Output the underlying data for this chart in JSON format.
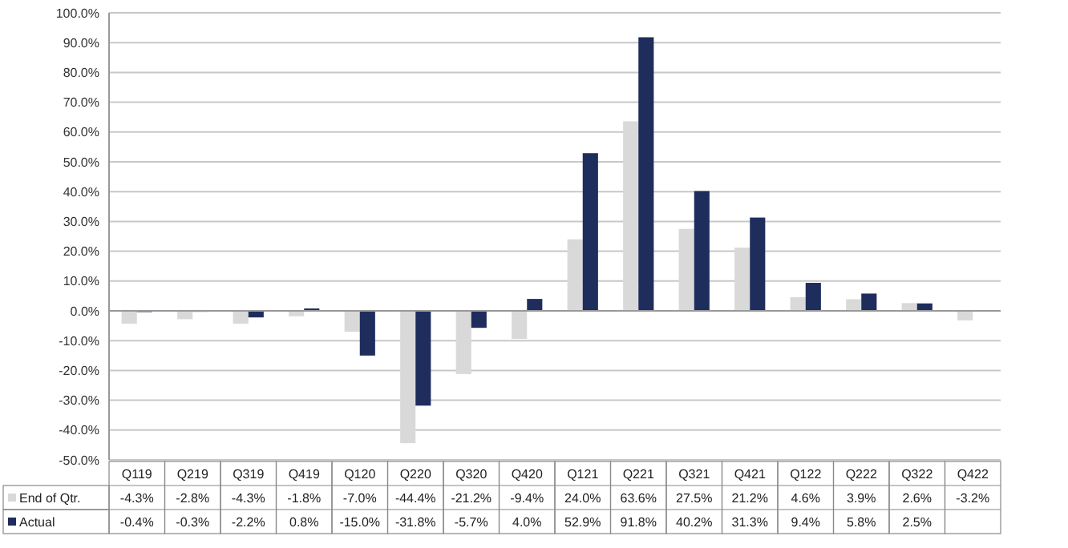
{
  "chart_data": {
    "type": "bar",
    "categories": [
      "Q119",
      "Q219",
      "Q319",
      "Q419",
      "Q120",
      "Q220",
      "Q320",
      "Q420",
      "Q121",
      "Q221",
      "Q321",
      "Q421",
      "Q122",
      "Q222",
      "Q322",
      "Q422"
    ],
    "series": [
      {
        "name": "End of Qtr.",
        "color": "#d9d9d9",
        "values": [
          -4.3,
          -2.8,
          -4.3,
          -1.8,
          -7.0,
          -44.4,
          -21.2,
          -9.4,
          24.0,
          63.6,
          27.5,
          21.2,
          4.6,
          3.9,
          2.6,
          -3.2
        ],
        "value_labels": [
          "-4.3%",
          "-2.8%",
          "-4.3%",
          "-1.8%",
          "-7.0%",
          "-44.4%",
          "-21.2%",
          "-9.4%",
          "24.0%",
          "63.6%",
          "27.5%",
          "21.2%",
          "4.6%",
          "3.9%",
          "2.6%",
          "-3.2%"
        ]
      },
      {
        "name": "Actual",
        "color": "#1f2d5c",
        "values": [
          -0.4,
          -0.3,
          -2.2,
          0.8,
          -15.0,
          -31.8,
          -5.7,
          4.0,
          52.9,
          91.8,
          40.2,
          31.3,
          9.4,
          5.8,
          2.5,
          null
        ],
        "value_labels": [
          "-0.4%",
          "-0.3%",
          "-2.2%",
          "0.8%",
          "-15.0%",
          "-31.8%",
          "-5.7%",
          "4.0%",
          "52.9%",
          "91.8%",
          "40.2%",
          "31.3%",
          "9.4%",
          "5.8%",
          "2.5%",
          null
        ]
      }
    ],
    "ylim": [
      -50,
      100
    ],
    "yticks": [
      {
        "value": -50,
        "label": "-50.0%"
      },
      {
        "value": -40,
        "label": "-40.0%"
      },
      {
        "value": -30,
        "label": "-30.0%"
      },
      {
        "value": -20,
        "label": "-20.0%"
      },
      {
        "value": -10,
        "label": "-10.0%"
      },
      {
        "value": 0,
        "label": "0.0%"
      },
      {
        "value": 10,
        "label": "10.0%"
      },
      {
        "value": 20,
        "label": "20.0%"
      },
      {
        "value": 30,
        "label": "30.0%"
      },
      {
        "value": 40,
        "label": "40.0%"
      },
      {
        "value": 50,
        "label": "50.0%"
      },
      {
        "value": 60,
        "label": "60.0%"
      },
      {
        "value": 70,
        "label": "70.0%"
      },
      {
        "value": 80,
        "label": "80.0%"
      },
      {
        "value": 90,
        "label": "90.0%"
      },
      {
        "value": 100,
        "label": "100.0%"
      }
    ],
    "grid": "y",
    "legend": "bottom"
  }
}
